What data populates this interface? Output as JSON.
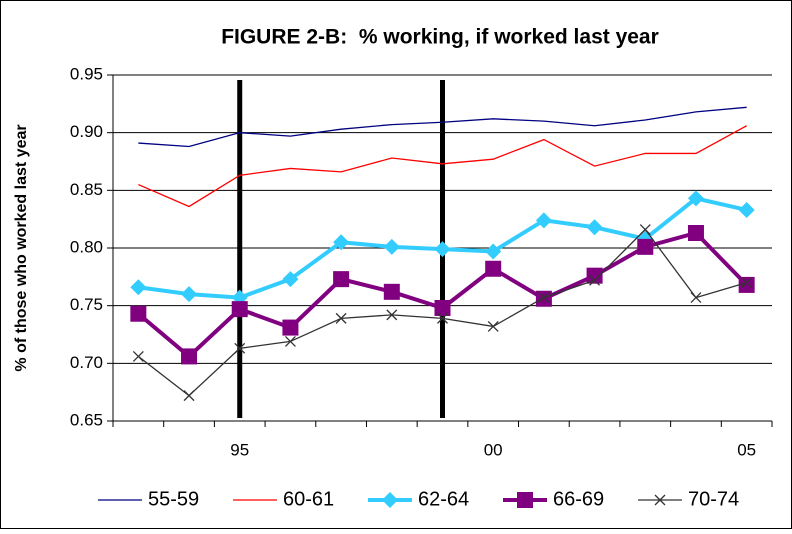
{
  "chart_data": {
    "type": "line",
    "title": "FIGURE 2-B:  % working, if worked last year",
    "y_label": "% of those who worked last year",
    "categories": [
      null,
      null,
      "95",
      null,
      null,
      null,
      null,
      "00",
      null,
      null,
      null,
      null,
      "05"
    ],
    "ylim": [
      0.65,
      0.95
    ],
    "yticks": [
      0.65,
      {
        "value": 0.7,
        "label": "0.70"
      },
      0.75,
      {
        "value": 0.8,
        "label": "0.80"
      },
      0.85,
      {
        "value": 0.9,
        "label": "0.90"
      },
      0.95
    ],
    "grid": true,
    "legend": "bottom",
    "series": [
      {
        "name": "55-59",
        "color": "#000080",
        "marker": "none",
        "values": [
          0.891,
          0.888,
          0.9,
          0.897,
          0.903,
          0.907,
          0.909,
          0.912,
          0.91,
          0.906,
          0.911,
          0.918,
          0.922
        ]
      },
      {
        "name": "60-61",
        "color": "#ff0000",
        "marker": "none",
        "values": [
          0.855,
          0.836,
          0.863,
          0.869,
          0.866,
          0.878,
          0.873,
          0.877,
          0.894,
          0.871,
          0.882,
          0.882,
          0.906
        ]
      },
      {
        "name": "62-64",
        "color": "#33ccff",
        "marker": "diamond",
        "values": [
          0.766,
          0.76,
          0.757,
          0.773,
          0.805,
          0.801,
          0.799,
          0.797,
          0.824,
          0.818,
          0.808,
          0.843,
          0.833
        ]
      },
      {
        "name": "66-69",
        "color": "#800080",
        "marker": "square",
        "values": [
          0.743,
          0.706,
          0.747,
          0.731,
          0.773,
          0.762,
          0.748,
          0.782,
          0.756,
          0.776,
          0.801,
          0.813,
          0.768
        ]
      },
      {
        "name": "70-74",
        "color": "#333333",
        "marker": "x",
        "values": [
          0.706,
          0.672,
          0.713,
          0.719,
          0.739,
          0.742,
          0.739,
          0.732,
          0.757,
          0.772,
          0.816,
          0.757,
          0.77
        ]
      }
    ]
  }
}
